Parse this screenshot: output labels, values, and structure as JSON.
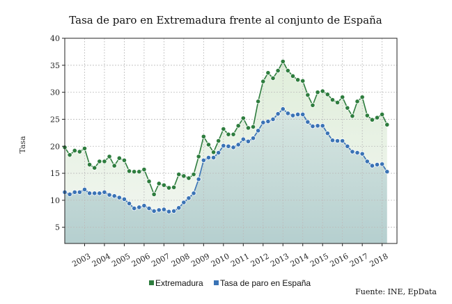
{
  "chart_data": {
    "type": "area",
    "title": "Tasa de paro en Extremadura frente al conjunto de España",
    "ylabel": "Tasa",
    "xlabel": "",
    "ylim": [
      2,
      40
    ],
    "yticks": [
      5,
      10,
      15,
      20,
      25,
      30,
      35,
      40
    ],
    "xlim": [
      2002.0,
      2018.75
    ],
    "x_tick_labels": [
      "2003",
      "2004",
      "2005",
      "2006",
      "2007",
      "2008",
      "2009",
      "2010",
      "2011",
      "2012",
      "2013",
      "2014",
      "2015",
      "2016",
      "2017",
      "2018"
    ],
    "grid": true,
    "legend_position": "bottom",
    "source": "Fuente: INE, EpData",
    "series": [
      {
        "name": "Extremadura",
        "color": "#2e7d3e",
        "values": [
          19.8,
          18.4,
          19.2,
          19.0,
          19.6,
          16.6,
          16.0,
          17.2,
          17.2,
          18.1,
          16.4,
          17.8,
          17.4,
          15.4,
          15.3,
          15.3,
          15.7,
          13.5,
          11.1,
          13.1,
          12.8,
          12.3,
          12.4,
          14.8,
          14.5,
          14.1,
          14.8,
          18.1,
          21.8,
          20.3,
          18.9,
          21.0,
          23.2,
          22.2,
          22.2,
          23.8,
          25.2,
          23.4,
          23.6,
          28.3,
          32.0,
          33.6,
          32.6,
          34.0,
          35.7,
          34.0,
          33.0,
          32.3,
          32.1,
          29.5,
          27.6,
          30.0,
          30.2,
          29.6,
          28.6,
          28.1,
          29.1,
          27.1,
          25.6,
          28.3,
          29.1,
          25.7,
          24.9,
          25.3,
          25.9,
          24.0
        ]
      },
      {
        "name": "Tasa de paro en España",
        "color": "#3a73b5",
        "values": [
          11.5,
          11.1,
          11.5,
          11.5,
          12.0,
          11.3,
          11.3,
          11.3,
          11.5,
          11.0,
          10.8,
          10.5,
          10.2,
          9.4,
          8.5,
          8.7,
          9.0,
          8.5,
          8.0,
          8.2,
          8.3,
          7.9,
          8.0,
          8.6,
          9.6,
          10.4,
          11.3,
          13.9,
          17.4,
          17.9,
          17.9,
          18.8,
          20.1,
          20.0,
          19.8,
          20.3,
          21.3,
          20.9,
          21.5,
          22.9,
          24.4,
          24.6,
          25.0,
          26.0,
          26.9,
          26.1,
          25.7,
          25.9,
          25.9,
          24.5,
          23.7,
          23.8,
          23.8,
          22.4,
          21.1,
          21.0,
          21.0,
          20.0,
          19.0,
          18.8,
          18.6,
          17.2,
          16.4,
          16.6,
          16.7,
          15.3
        ]
      }
    ]
  }
}
